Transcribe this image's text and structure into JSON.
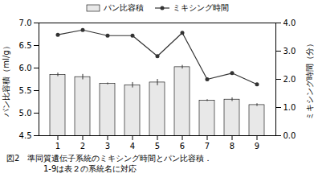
{
  "chart_data": {
    "type": "bar",
    "categories": [
      1,
      2,
      3,
      4,
      5,
      6,
      7,
      8,
      9
    ],
    "series": [
      {
        "name": "パン比容積",
        "type": "bar",
        "color": "#e8e8e8",
        "values": [
          5.85,
          5.8,
          5.65,
          5.62,
          5.68,
          6.02,
          5.28,
          5.3,
          5.18
        ],
        "errors": [
          0.04,
          0.06,
          0.02,
          0.06,
          0.07,
          0.04,
          0.02,
          0.04,
          0.03
        ]
      },
      {
        "name": "ミキシング時間",
        "type": "line",
        "color": "#333333",
        "marker": "circle",
        "axis": "y2",
        "values": [
          3.58,
          3.75,
          3.55,
          3.55,
          2.82,
          3.65,
          2.0,
          2.22,
          1.82
        ]
      }
    ],
    "ylabel": "パン比容積（ml/g）",
    "y2label": "ミキシング時間（分）",
    "ylim": [
      4.5,
      7.0
    ],
    "yticks": [
      4.5,
      {
        "value": 5.0,
        "label": "5.0"
      },
      5.5,
      {
        "value": 6.0,
        "label": "6.0"
      },
      6.5,
      {
        "value": 7.0,
        "label": "7.0"
      }
    ],
    "y2lim": [
      0.0,
      4.0
    ],
    "y2ticks": [
      {
        "value": 0.0,
        "label": "0.0"
      },
      {
        "value": 1.0,
        "label": "1.0"
      },
      {
        "value": 2.0,
        "label": "2.0"
      },
      {
        "value": 3.0,
        "label": "3.0"
      },
      {
        "value": 4.0,
        "label": "4.0"
      }
    ],
    "legend": "top",
    "annotations": [
      "図2　準同質遺伝子系統のミキシング時間とパン比容積．",
      "1-9は表２の系統名に対応"
    ]
  }
}
